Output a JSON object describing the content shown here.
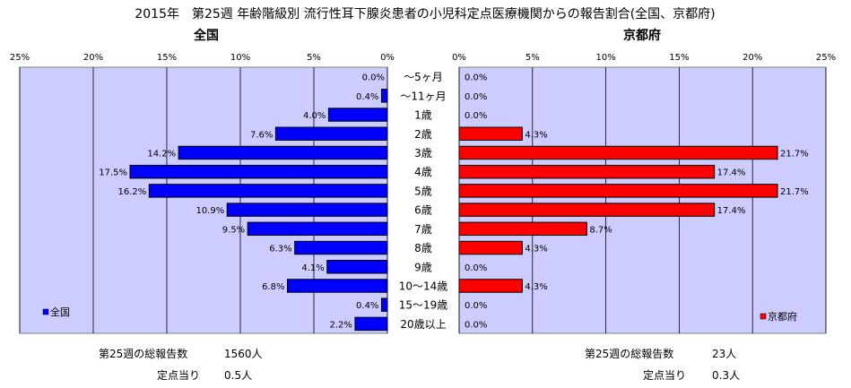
{
  "title": "2015年　第25週 年齢階級別 流行性耳下腺炎患者の小児科定点医療機関からの報告割合(全国、京都府)",
  "chart_data": {
    "type": "bar",
    "orientation": "horizontal-butterfly",
    "categories": [
      "～5ヶ月",
      "～11ヶ月",
      "1歳",
      "2歳",
      "3歳",
      "4歳",
      "5歳",
      "6歳",
      "7歳",
      "8歳",
      "9歳",
      "10～14歳",
      "15～19歳",
      "20歳以上"
    ],
    "xlim": [
      0,
      25
    ],
    "ticks": [
      "0%",
      "5%",
      "10%",
      "15%",
      "20%",
      "25%"
    ],
    "grid": true,
    "series": [
      {
        "name": "全国",
        "heading": "全国",
        "side": "left",
        "color": "#0000ff",
        "values": [
          0.0,
          0.4,
          4.0,
          7.6,
          14.2,
          17.5,
          16.2,
          10.9,
          9.5,
          6.3,
          4.1,
          6.8,
          0.4,
          2.2
        ],
        "labels": [
          "0.0%",
          "0.4%",
          "4.0%",
          "7.6%",
          "14.2%",
          "17.5%",
          "16.2%",
          "10.9%",
          "9.5%",
          "6.3%",
          "4.1%",
          "6.8%",
          "0.4%",
          "2.2%"
        ],
        "legend_position": "bottom-left",
        "total_label": "第25週の総報告数",
        "total_value": "1560人",
        "per_site_label": "定点当り",
        "per_site_value": "0.5人"
      },
      {
        "name": "京都府",
        "heading": "京都府",
        "side": "right",
        "color": "#ff0000",
        "values": [
          0.0,
          0.0,
          0.0,
          4.3,
          21.7,
          17.4,
          21.7,
          17.4,
          8.7,
          4.3,
          0.0,
          4.3,
          0.0,
          0.0
        ],
        "labels": [
          "0.0%",
          "0.0%",
          "0.0%",
          "4.3%",
          "21.7%",
          "17.4%",
          "21.7%",
          "17.4%",
          "8.7%",
          "4.3%",
          "0.0%",
          "4.3%",
          "0.0%",
          "0.0%"
        ],
        "legend_position": "bottom-right",
        "total_label": "第25週の総報告数",
        "total_value": "23人",
        "per_site_label": "定点当り",
        "per_site_value": "0.3人"
      }
    ]
  },
  "colors": {
    "plot_background": "#ccccff",
    "gridline": "#000000",
    "bar_border": "#000000"
  }
}
